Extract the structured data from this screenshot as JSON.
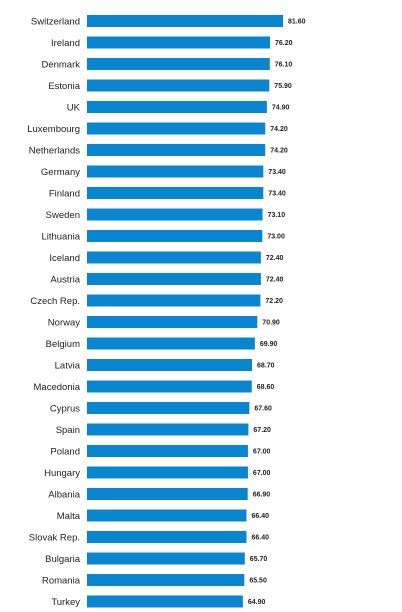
{
  "chart_data": {
    "type": "bar",
    "orientation": "horizontal",
    "bar_color": "#0a86d0",
    "categories": [
      "Switzerland",
      "Ireland",
      "Denmark",
      "Estonia",
      "UK",
      "Luxembourg",
      "Netherlands",
      "Germany",
      "Finland",
      "Sweden",
      "Lithuania",
      "Iceland",
      "Austria",
      "Czech Rep.",
      "Norway",
      "Belgium",
      "Latvia",
      "Macedonia",
      "Cyprus",
      "Spain",
      "Poland",
      "Hungary",
      "Albania",
      "Malta",
      "Slovak Rep.",
      "Bulgaria",
      "Romania",
      "Turkey"
    ],
    "values": [
      81.6,
      76.2,
      76.1,
      75.9,
      74.9,
      74.2,
      74.2,
      73.4,
      73.4,
      73.1,
      73.0,
      72.4,
      72.4,
      72.2,
      70.9,
      69.9,
      68.7,
      68.6,
      67.6,
      67.2,
      67.0,
      67.0,
      66.9,
      66.4,
      66.4,
      65.7,
      65.5,
      64.9
    ],
    "value_labels": [
      "81.60",
      "76.20",
      "76.10",
      "75.90",
      "74.90",
      "74.20",
      "74.20",
      "73.40",
      "73.40",
      "73.10",
      "73.00",
      "72.40",
      "72.40",
      "72.20",
      "70.90",
      "69.90",
      "68.70",
      "68.60",
      "67.60",
      "67.20",
      "67.00",
      "67.00",
      "66.90",
      "66.40",
      "66.40",
      "65.70",
      "65.50",
      "64.90"
    ],
    "xlim": [
      0,
      81.6
    ],
    "grid": false,
    "legend": "none"
  }
}
